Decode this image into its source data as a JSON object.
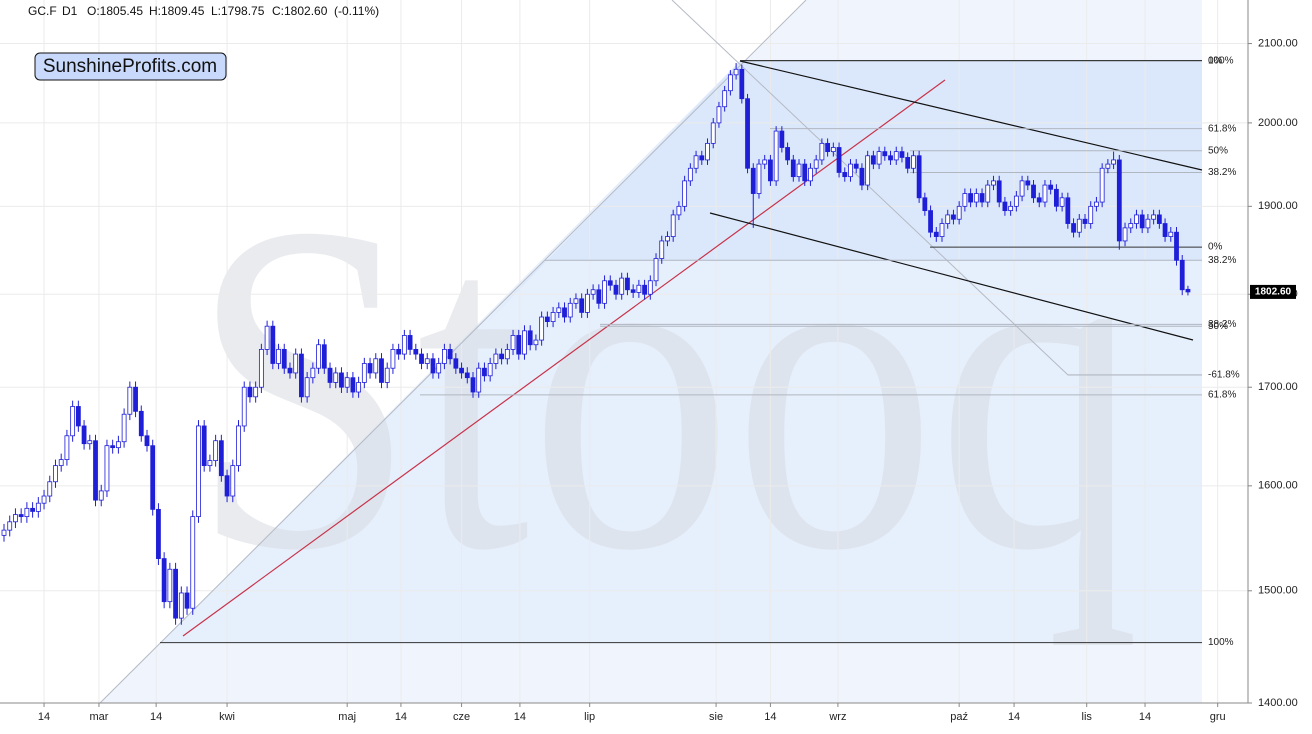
{
  "header": {
    "symbol": "GC.F",
    "interval": "D1",
    "open": "O:1805.45",
    "high": "H:1809.45",
    "low": "L:1798.75",
    "close": "C:1802.60",
    "change": "(-0.11%)"
  },
  "badge": "SunshineProfits.com",
  "watermark": "Stooq",
  "chart_data": {
    "type": "candlestick",
    "log": true,
    "grid": true,
    "color_up": "#ffffff",
    "color_down": "#1f1fd8",
    "outline": "#1f1fd8",
    "open": [
      1552,
      1557,
      1565,
      1572,
      1570,
      1578,
      1575,
      1583,
      1590,
      1604,
      1620,
      1626,
      1650,
      1680,
      1660,
      1642,
      1645,
      1586,
      1595,
      1640,
      1638,
      1644,
      1672,
      1700,
      1675,
      1650,
      1640,
      1577,
      1530,
      1490,
      1520,
      1475,
      1498,
      1484,
      1570,
      1660,
      1620,
      1625,
      1645,
      1610,
      1590,
      1620,
      1660,
      1700,
      1690,
      1700,
      1740,
      1765,
      1725,
      1740,
      1720,
      1715,
      1735,
      1690,
      1710,
      1720,
      1745,
      1720,
      1705,
      1715,
      1700,
      1710,
      1695,
      1705,
      1725,
      1715,
      1730,
      1705,
      1720,
      1740,
      1735,
      1755,
      1740,
      1735,
      1725,
      1730,
      1715,
      1725,
      1740,
      1730,
      1720,
      1715,
      1710,
      1695,
      1720,
      1712,
      1725,
      1735,
      1730,
      1740,
      1755,
      1735,
      1760,
      1745,
      1750,
      1775,
      1770,
      1780,
      1785,
      1775,
      1790,
      1795,
      1780,
      1800,
      1805,
      1790,
      1815,
      1810,
      1800,
      1818,
      1805,
      1802,
      1810,
      1800,
      1815,
      1840,
      1860,
      1865,
      1890,
      1900,
      1930,
      1945,
      1960,
      1955,
      1975,
      2000,
      2020,
      2040,
      2060,
      2067,
      2030,
      1945,
      1915,
      1950,
      1955,
      1930,
      1990,
      1970,
      1955,
      1935,
      1950,
      1930,
      1945,
      1955,
      1975,
      1965,
      1970,
      1940,
      1935,
      1950,
      1945,
      1925,
      1960,
      1950,
      1965,
      1960,
      1955,
      1965,
      1958,
      1945,
      1960,
      1910,
      1895,
      1870,
      1865,
      1880,
      1890,
      1885,
      1900,
      1915,
      1905,
      1915,
      1905,
      1925,
      1930,
      1905,
      1895,
      1900,
      1912,
      1930,
      1925,
      1910,
      1905,
      1925,
      1920,
      1900,
      1910,
      1880,
      1870,
      1885,
      1880,
      1900,
      1905,
      1945,
      1950,
      1955,
      1860,
      1875,
      1880,
      1890,
      1875,
      1885,
      1890,
      1880,
      1865,
      1870,
      1838,
      1805.45
    ],
    "high": [
      1563,
      1571,
      1578,
      1578,
      1584,
      1584,
      1589,
      1596,
      1610,
      1626,
      1632,
      1656,
      1686,
      1686,
      1666,
      1651,
      1651,
      1601,
      1646,
      1646,
      1650,
      1678,
      1706,
      1706,
      1681,
      1656,
      1646,
      1583,
      1536,
      1526,
      1526,
      1504,
      1504,
      1576,
      1666,
      1666,
      1631,
      1651,
      1651,
      1616,
      1626,
      1666,
      1706,
      1706,
      1706,
      1746,
      1771,
      1771,
      1746,
      1746,
      1726,
      1741,
      1741,
      1716,
      1726,
      1751,
      1751,
      1726,
      1721,
      1721,
      1716,
      1716,
      1711,
      1731,
      1731,
      1736,
      1736,
      1726,
      1746,
      1746,
      1761,
      1761,
      1746,
      1741,
      1736,
      1736,
      1731,
      1746,
      1746,
      1736,
      1726,
      1721,
      1716,
      1726,
      1726,
      1731,
      1741,
      1741,
      1746,
      1761,
      1761,
      1766,
      1766,
      1756,
      1781,
      1781,
      1786,
      1791,
      1791,
      1796,
      1801,
      1801,
      1806,
      1811,
      1811,
      1821,
      1821,
      1816,
      1824,
      1824,
      1811,
      1816,
      1816,
      1821,
      1846,
      1866,
      1871,
      1896,
      1906,
      1936,
      1951,
      1966,
      1966,
      1981,
      2006,
      2026,
      2046,
      2066,
      2075,
      2073,
      2036,
      1951,
      1956,
      1961,
      1961,
      1996,
      1996,
      1976,
      1961,
      1956,
      1956,
      1951,
      1961,
      1981,
      1981,
      1976,
      1976,
      1946,
      1956,
      1956,
      1951,
      1966,
      1966,
      1971,
      1971,
      1966,
      1971,
      1971,
      1964,
      1966,
      1966,
      1916,
      1901,
      1876,
      1886,
      1896,
      1896,
      1906,
      1921,
      1921,
      1921,
      1921,
      1931,
      1936,
      1936,
      1911,
      1906,
      1918,
      1936,
      1936,
      1931,
      1916,
      1931,
      1931,
      1926,
      1916,
      1916,
      1886,
      1891,
      1891,
      1906,
      1911,
      1951,
      1956,
      1965,
      1961,
      1881,
      1886,
      1896,
      1896,
      1891,
      1896,
      1896,
      1886,
      1876,
      1876,
      1844,
      1809.45
    ],
    "low": [
      1546,
      1551,
      1559,
      1564,
      1564,
      1569,
      1569,
      1577,
      1584,
      1598,
      1614,
      1620,
      1644,
      1654,
      1636,
      1636,
      1580,
      1580,
      1589,
      1632,
      1632,
      1638,
      1666,
      1669,
      1644,
      1634,
      1571,
      1524,
      1484,
      1484,
      1469,
      1469,
      1478,
      1478,
      1564,
      1614,
      1614,
      1619,
      1604,
      1584,
      1584,
      1614,
      1654,
      1684,
      1684,
      1694,
      1734,
      1719,
      1719,
      1714,
      1709,
      1709,
      1684,
      1684,
      1704,
      1714,
      1714,
      1699,
      1699,
      1694,
      1694,
      1689,
      1689,
      1699,
      1709,
      1709,
      1699,
      1699,
      1714,
      1729,
      1729,
      1734,
      1729,
      1719,
      1719,
      1709,
      1709,
      1719,
      1724,
      1714,
      1709,
      1704,
      1689,
      1689,
      1706,
      1706,
      1719,
      1724,
      1724,
      1734,
      1729,
      1729,
      1739,
      1739,
      1744,
      1764,
      1764,
      1774,
      1769,
      1769,
      1784,
      1774,
      1774,
      1794,
      1784,
      1784,
      1804,
      1794,
      1794,
      1799,
      1796,
      1796,
      1794,
      1794,
      1809,
      1834,
      1854,
      1859,
      1884,
      1894,
      1924,
      1939,
      1949,
      1949,
      1969,
      1994,
      2014,
      2034,
      2054,
      2024,
      1939,
      1875,
      1909,
      1944,
      1924,
      1924,
      1964,
      1949,
      1929,
      1929,
      1924,
      1924,
      1939,
      1949,
      1959,
      1959,
      1934,
      1929,
      1929,
      1939,
      1919,
      1919,
      1944,
      1944,
      1954,
      1949,
      1949,
      1952,
      1939,
      1939,
      1904,
      1889,
      1864,
      1859,
      1859,
      1874,
      1879,
      1879,
      1894,
      1899,
      1899,
      1899,
      1899,
      1919,
      1899,
      1889,
      1889,
      1894,
      1906,
      1919,
      1904,
      1899,
      1899,
      1914,
      1894,
      1894,
      1874,
      1864,
      1864,
      1874,
      1874,
      1894,
      1899,
      1939,
      1944,
      1850,
      1854,
      1869,
      1874,
      1869,
      1869,
      1879,
      1874,
      1859,
      1859,
      1832,
      1799,
      1798.75
    ],
    "close": [
      1557,
      1565,
      1572,
      1570,
      1578,
      1575,
      1583,
      1590,
      1604,
      1620,
      1626,
      1650,
      1680,
      1660,
      1642,
      1645,
      1586,
      1595,
      1640,
      1638,
      1644,
      1672,
      1700,
      1675,
      1650,
      1640,
      1577,
      1530,
      1490,
      1520,
      1475,
      1498,
      1484,
      1570,
      1660,
      1620,
      1625,
      1645,
      1610,
      1590,
      1620,
      1660,
      1700,
      1690,
      1700,
      1740,
      1765,
      1725,
      1740,
      1720,
      1715,
      1735,
      1690,
      1710,
      1720,
      1745,
      1720,
      1705,
      1715,
      1700,
      1710,
      1695,
      1705,
      1725,
      1715,
      1730,
      1705,
      1720,
      1740,
      1735,
      1755,
      1740,
      1735,
      1725,
      1730,
      1715,
      1725,
      1740,
      1730,
      1720,
      1715,
      1710,
      1695,
      1720,
      1712,
      1725,
      1735,
      1730,
      1740,
      1755,
      1735,
      1760,
      1745,
      1750,
      1775,
      1770,
      1780,
      1785,
      1775,
      1790,
      1795,
      1780,
      1800,
      1805,
      1790,
      1815,
      1810,
      1800,
      1818,
      1805,
      1802,
      1810,
      1800,
      1815,
      1840,
      1860,
      1865,
      1890,
      1900,
      1930,
      1945,
      1960,
      1955,
      1975,
      2000,
      2020,
      2040,
      2060,
      2067,
      2030,
      1945,
      1915,
      1950,
      1955,
      1930,
      1990,
      1970,
      1955,
      1935,
      1950,
      1930,
      1945,
      1955,
      1975,
      1965,
      1970,
      1940,
      1935,
      1950,
      1945,
      1925,
      1960,
      1950,
      1965,
      1960,
      1955,
      1965,
      1958,
      1945,
      1960,
      1910,
      1895,
      1870,
      1865,
      1880,
      1890,
      1885,
      1900,
      1915,
      1905,
      1915,
      1905,
      1925,
      1930,
      1905,
      1895,
      1900,
      1912,
      1930,
      1925,
      1910,
      1905,
      1925,
      1920,
      1900,
      1910,
      1880,
      1870,
      1885,
      1880,
      1900,
      1905,
      1945,
      1950,
      1955,
      1860,
      1875,
      1880,
      1890,
      1875,
      1885,
      1890,
      1880,
      1865,
      1870,
      1838,
      1805,
      1802.6
    ],
    "last_price_label": "1802.60",
    "xlim": [
      -0.7,
      217.5
    ],
    "xticks": [
      {
        "value": 7,
        "label": "14"
      },
      {
        "value": 16.6,
        "label": "mar"
      },
      {
        "value": 26.6,
        "label": "14"
      },
      {
        "value": 39,
        "label": "kwi"
      },
      {
        "value": 60,
        "label": "maj"
      },
      {
        "value": 69.4,
        "label": "14"
      },
      {
        "value": 80,
        "label": "cze"
      },
      {
        "value": 90.2,
        "label": "14"
      },
      {
        "value": 102.4,
        "label": "lip"
      },
      {
        "value": 124.5,
        "label": "sie"
      },
      {
        "value": 134,
        "label": "14"
      },
      {
        "value": 145.8,
        "label": "wrz"
      },
      {
        "value": 167,
        "label": "paź"
      },
      {
        "value": 176.6,
        "label": "14"
      },
      {
        "value": 189.3,
        "label": "lis"
      },
      {
        "value": 199.5,
        "label": "14"
      },
      {
        "value": 212.2,
        "label": "gru"
      }
    ],
    "ylim": [
      1400,
      2157
    ],
    "yticks": [
      {
        "value": 1400,
        "label": "1400.00"
      },
      {
        "value": 1500,
        "label": "1500.00"
      },
      {
        "value": 1600,
        "label": "1600.00"
      },
      {
        "value": 1700,
        "label": "1700.00"
      },
      {
        "value": 1800,
        "label": "1800.00"
      },
      {
        "value": 1900,
        "label": "1900.00"
      },
      {
        "value": 2000,
        "label": "2000.00"
      },
      {
        "value": 2100,
        "label": "2100.00"
      }
    ],
    "fib_levels": [
      {
        "value": 2078,
        "label": "100%"
      },
      {
        "value": 2078,
        "label": "0%"
      },
      {
        "value": 1993,
        "label": "61.8%"
      },
      {
        "value": 1966,
        "label": "50%"
      },
      {
        "value": 1940,
        "label": "38.2%"
      },
      {
        "value": 1853,
        "label": "0%"
      },
      {
        "value": 1838,
        "label": "38.2%"
      },
      {
        "value": 1767,
        "label": "38.2%"
      },
      {
        "value": 1765,
        "label": "50%"
      },
      {
        "value": 1713,
        "label": "-61.8%"
      },
      {
        "value": 1692,
        "label": "61.8%"
      },
      {
        "value": 1453,
        "label": "100%"
      }
    ]
  }
}
